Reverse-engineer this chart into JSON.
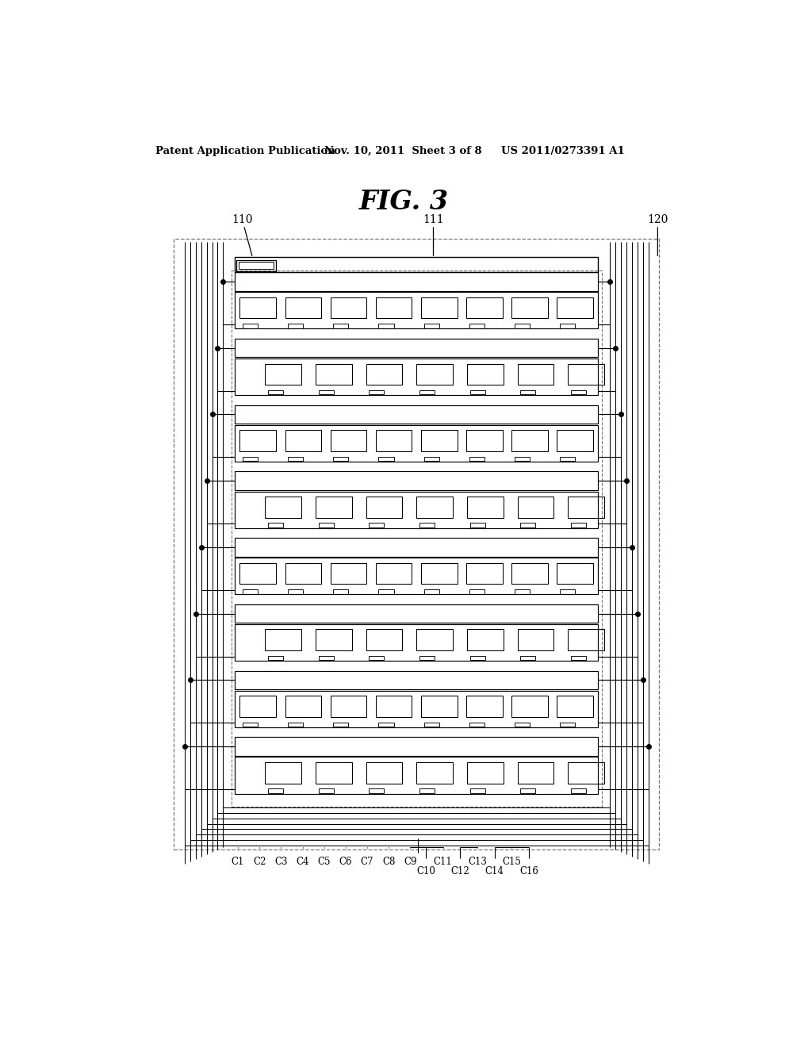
{
  "bg_color": "#ffffff",
  "line_color": "#000000",
  "dash_color": "#777777",
  "header_left": "Patent Application Publication",
  "header_mid": "Nov. 10, 2011  Sheet 3 of 8",
  "header_right": "US 2011/0273391 A1",
  "title": "FIG. 3",
  "label_110": "110",
  "label_111": "111",
  "label_120": "120",
  "col_labels_top_row": [
    "C1",
    "C2",
    "C3",
    "C4",
    "C5",
    "C6",
    "C7",
    "C8",
    "C9",
    "C11",
    "C13",
    "C15"
  ],
  "col_labels_bot_row": [
    "C10",
    "C12",
    "C14",
    "C16"
  ],
  "PL": 135,
  "PR": 890,
  "PT": 1080,
  "PB": 210,
  "nw": 8,
  "ws": 9,
  "num_row_groups": 8
}
